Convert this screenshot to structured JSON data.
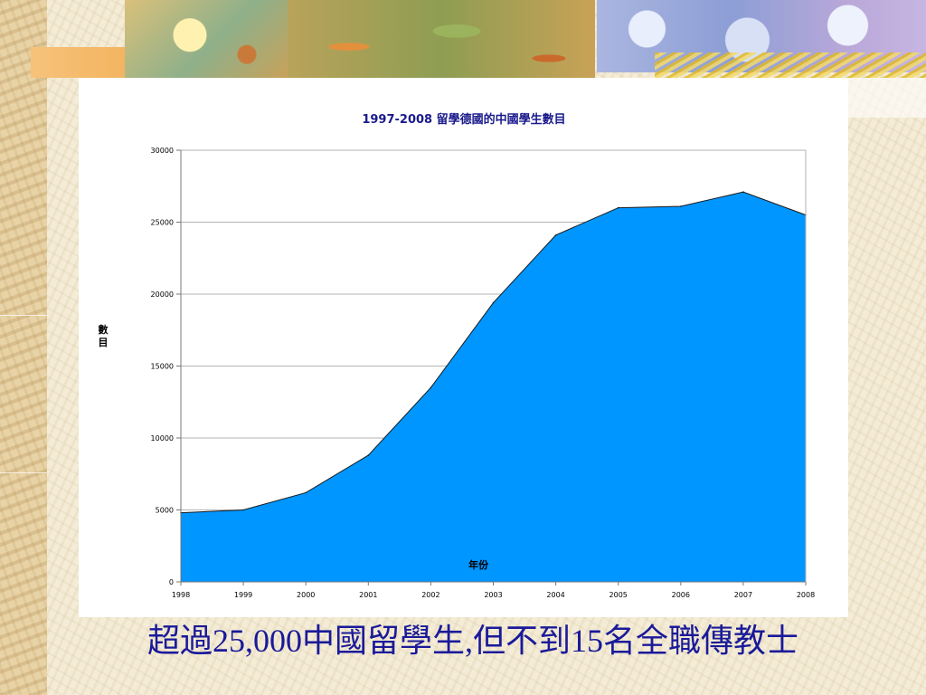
{
  "chart_data": {
    "type": "area",
    "title": "1997-2008 留學德國的中國學生數目",
    "xlabel": "年份",
    "ylabel": "數目",
    "x": [
      "1998",
      "1999",
      "2000",
      "2001",
      "2002",
      "2003",
      "2004",
      "2005",
      "2006",
      "2007",
      "2008"
    ],
    "series": [
      {
        "values": [
          4800,
          5000,
          6200,
          8800,
          13500,
          19400,
          24100,
          26000,
          26100,
          27100,
          25500
        ]
      }
    ],
    "yticks": [
      "0",
      "5000",
      "10000",
      "15000",
      "20000",
      "25000",
      "30000"
    ],
    "ylim": [
      0,
      30000
    ],
    "grid": "horizontal",
    "legend": "none",
    "colors": {
      "fill": "#0096ff",
      "line": "#1a1a1a",
      "title": "#1a1a8c",
      "grid": "#b3b3b3"
    }
  },
  "caption": "超過25,000中國留學生,但不到15名全職傳教士"
}
